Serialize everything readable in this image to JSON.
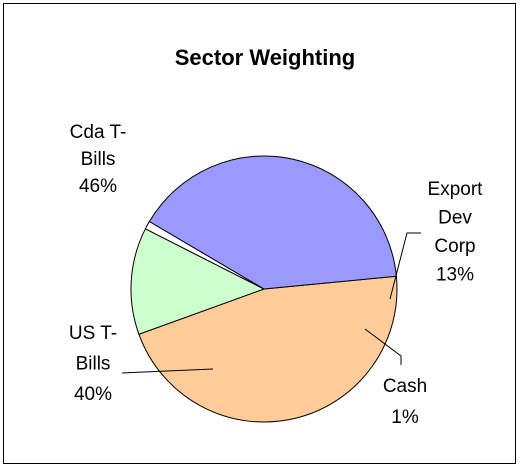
{
  "chart_data": {
    "type": "pie",
    "title": "Sector Weighting",
    "slices": [
      {
        "label_lines": [
          "Cda T-",
          "Bills",
          "46%"
        ],
        "name": "Cda T-Bills",
        "value": 46,
        "color": "#FFCC99"
      },
      {
        "label_lines": [
          "Export",
          "Dev",
          "Corp",
          "13%"
        ],
        "name": "Export Dev Corp",
        "value": 13,
        "color": "#CCFFCC"
      },
      {
        "label_lines": [
          "Cash",
          "1%"
        ],
        "name": "Cash",
        "value": 1,
        "color": "#FFFFFF"
      },
      {
        "label_lines": [
          "US T-",
          "Bills",
          "40%"
        ],
        "name": "US T-Bills",
        "value": 40,
        "color": "#9999FF"
      }
    ],
    "legend": "none",
    "data_labels": "outside with leader lines"
  }
}
